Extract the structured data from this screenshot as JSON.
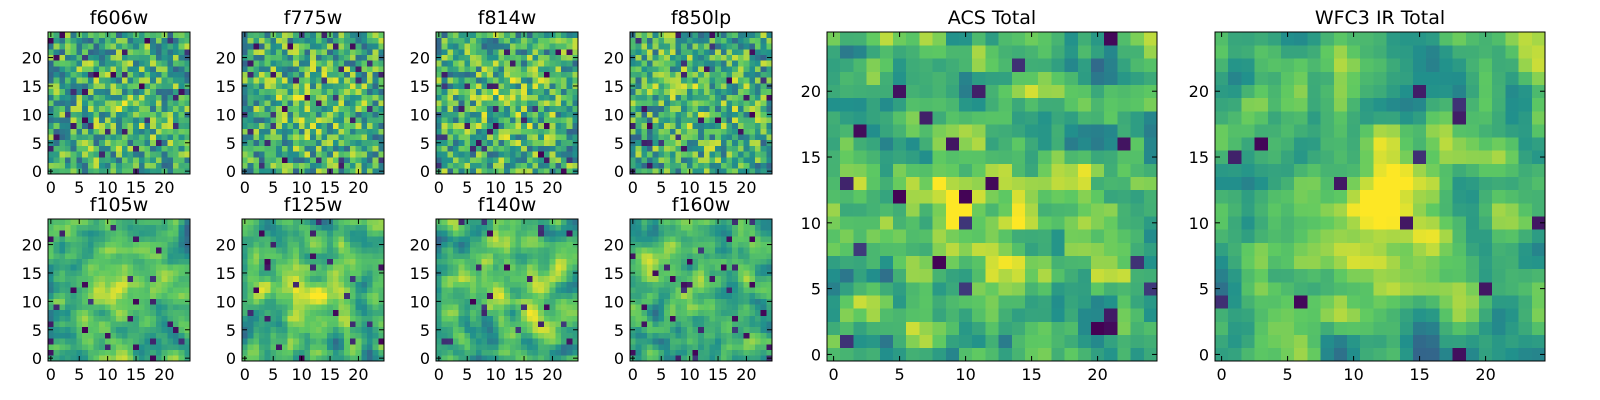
{
  "chart_data": [
    {
      "type": "heatmap",
      "title": "f606w",
      "grid_size": 25,
      "xlim": [
        0,
        24
      ],
      "ylim": [
        0,
        24
      ],
      "xticks": [
        0,
        5,
        10,
        15,
        20
      ],
      "yticks": [
        0,
        5,
        10,
        15,
        20
      ],
      "seed": 11,
      "smoothing": 0,
      "dark_fraction": 0.05,
      "bright_center": 0.15
    },
    {
      "type": "heatmap",
      "title": "f775w",
      "grid_size": 25,
      "xlim": [
        0,
        24
      ],
      "ylim": [
        0,
        24
      ],
      "xticks": [
        0,
        5,
        10,
        15,
        20
      ],
      "yticks": [
        0,
        5,
        10,
        15,
        20
      ],
      "seed": 23,
      "smoothing": 0,
      "dark_fraction": 0.05,
      "bright_center": 0.2
    },
    {
      "type": "heatmap",
      "title": "f814w",
      "grid_size": 25,
      "xlim": [
        0,
        24
      ],
      "ylim": [
        0,
        24
      ],
      "xticks": [
        0,
        5,
        10,
        15,
        20
      ],
      "yticks": [
        0,
        5,
        10,
        15,
        20
      ],
      "seed": 37,
      "smoothing": 0,
      "dark_fraction": 0.04,
      "bright_center": 0.2
    },
    {
      "type": "heatmap",
      "title": "f850lp",
      "grid_size": 25,
      "xlim": [
        0,
        24
      ],
      "ylim": [
        0,
        24
      ],
      "xticks": [
        0,
        5,
        10,
        15,
        20
      ],
      "yticks": [
        0,
        5,
        10,
        15,
        20
      ],
      "seed": 41,
      "smoothing": 0,
      "dark_fraction": 0.06,
      "bright_center": 0.15
    },
    {
      "type": "heatmap",
      "title": "f105w",
      "grid_size": 25,
      "xlim": [
        0,
        24
      ],
      "ylim": [
        0,
        24
      ],
      "xticks": [
        0,
        5,
        10,
        15,
        20
      ],
      "yticks": [
        0,
        5,
        10,
        15,
        20
      ],
      "seed": 53,
      "smoothing": 2,
      "dark_fraction": 0.03,
      "bright_center": 0.35
    },
    {
      "type": "heatmap",
      "title": "f125w",
      "grid_size": 25,
      "xlim": [
        0,
        24
      ],
      "ylim": [
        0,
        24
      ],
      "xticks": [
        0,
        5,
        10,
        15,
        20
      ],
      "yticks": [
        0,
        5,
        10,
        15,
        20
      ],
      "seed": 67,
      "smoothing": 2,
      "dark_fraction": 0.03,
      "bright_center": 0.35
    },
    {
      "type": "heatmap",
      "title": "f140w",
      "grid_size": 25,
      "xlim": [
        0,
        24
      ],
      "ylim": [
        0,
        24
      ],
      "xticks": [
        0,
        5,
        10,
        15,
        20
      ],
      "yticks": [
        0,
        5,
        10,
        15,
        20
      ],
      "seed": 79,
      "smoothing": 2,
      "dark_fraction": 0.03,
      "bright_center": 0.3
    },
    {
      "type": "heatmap",
      "title": "f160w",
      "grid_size": 25,
      "xlim": [
        0,
        24
      ],
      "ylim": [
        0,
        24
      ],
      "xticks": [
        0,
        5,
        10,
        15,
        20
      ],
      "yticks": [
        0,
        5,
        10,
        15,
        20
      ],
      "seed": 83,
      "smoothing": 2,
      "dark_fraction": 0.04,
      "bright_center": 0.3
    },
    {
      "type": "heatmap",
      "title": "ACS Total",
      "grid_size": 25,
      "xlim": [
        0,
        24
      ],
      "ylim": [
        0,
        24
      ],
      "xticks": [
        0,
        5,
        10,
        15,
        20
      ],
      "yticks": [
        0,
        5,
        10,
        15,
        20
      ],
      "seed": 97,
      "smoothing": 1,
      "dark_fraction": 0.04,
      "bright_center": 0.45
    },
    {
      "type": "heatmap",
      "title": "WFC3 IR Total",
      "grid_size": 25,
      "xlim": [
        0,
        24
      ],
      "ylim": [
        0,
        24
      ],
      "xticks": [
        0,
        5,
        10,
        15,
        20
      ],
      "yticks": [
        0,
        5,
        10,
        15,
        20
      ],
      "seed": 101,
      "smoothing": 2,
      "dark_fraction": 0.03,
      "bright_center": 0.55
    }
  ],
  "colormap": [
    "#440154",
    "#3b528b",
    "#21918c",
    "#5ec962",
    "#fde725"
  ]
}
